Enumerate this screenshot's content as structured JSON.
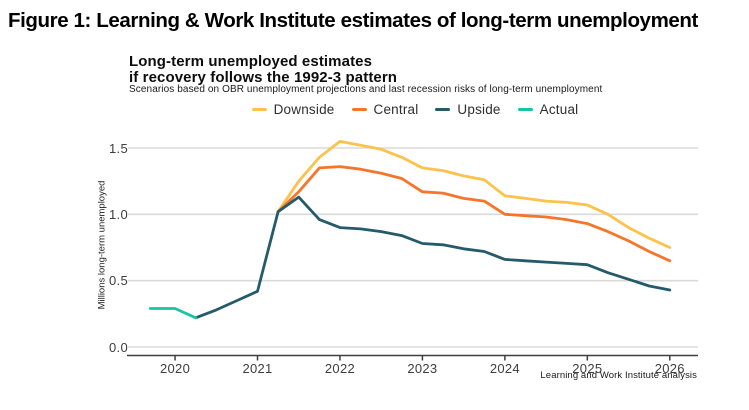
{
  "figure_title": "Figure 1: Learning & Work Institute estimates of long-term unemployment",
  "chart_data": {
    "type": "line",
    "title_line1": "Long-term unemployed estimates",
    "title_line2": "if recovery follows the 1992-3 pattern",
    "subtitle": "Scenarios based on OBR unemployment projections and last recession risks of long-term unemployment",
    "ylabel": "Millions long-term unemployed",
    "xlabel": "",
    "source_caption": "Learning and Work Institute analysis",
    "xlim": [
      2019.49,
      2026.33
    ],
    "ylim": [
      0,
      1.5
    ],
    "x_ticks": [
      "2020",
      "2021",
      "2022",
      "2023",
      "2024",
      "2025",
      "2026"
    ],
    "x_tick_values": [
      2020,
      2021,
      2022,
      2023,
      2024,
      2025,
      2026
    ],
    "y_ticks": [
      "0.0",
      "0.5",
      "1.0",
      "1.5"
    ],
    "y_tick_values": [
      0,
      0.5,
      1.0,
      1.5
    ],
    "grid": "horizontal",
    "legend_position": "top-center",
    "colors": {
      "grid": "#DADADA",
      "axis": "#3F3F3F"
    },
    "series": [
      {
        "name": "Downside",
        "color": "#FCC24B",
        "x": [
          2021.25,
          2021.5,
          2021.75,
          2022,
          2022.25,
          2022.5,
          2022.75,
          2023,
          2023.25,
          2023.5,
          2023.75,
          2024,
          2024.25,
          2024.5,
          2024.75,
          2025,
          2025.25,
          2025.5,
          2025.75,
          2026
        ],
        "y": [
          1.02,
          1.25,
          1.43,
          1.55,
          1.52,
          1.49,
          1.43,
          1.35,
          1.33,
          1.29,
          1.26,
          1.14,
          1.12,
          1.1,
          1.09,
          1.07,
          1.0,
          0.9,
          0.82,
          0.75
        ]
      },
      {
        "name": "Central",
        "color": "#F5752B",
        "x": [
          2021.25,
          2021.5,
          2021.75,
          2022,
          2022.25,
          2022.5,
          2022.75,
          2023,
          2023.25,
          2023.5,
          2023.75,
          2024,
          2024.25,
          2024.5,
          2024.75,
          2025,
          2025.25,
          2025.5,
          2025.75,
          2026
        ],
        "y": [
          1.02,
          1.17,
          1.35,
          1.36,
          1.34,
          1.31,
          1.27,
          1.17,
          1.16,
          1.12,
          1.1,
          1.0,
          0.99,
          0.98,
          0.96,
          0.93,
          0.87,
          0.8,
          0.72,
          0.65
        ]
      },
      {
        "name": "Upside",
        "color": "#255A6B",
        "x": [
          2020.25,
          2020.5,
          2020.75,
          2021,
          2021.25,
          2021.5,
          2021.75,
          2022,
          2022.25,
          2022.5,
          2022.75,
          2023,
          2023.25,
          2023.5,
          2023.75,
          2024,
          2024.25,
          2024.5,
          2024.75,
          2025,
          2025.25,
          2025.5,
          2025.75,
          2026
        ],
        "y": [
          0.22,
          0.28,
          0.35,
          0.42,
          1.02,
          1.13,
          0.96,
          0.9,
          0.89,
          0.87,
          0.84,
          0.78,
          0.77,
          0.74,
          0.72,
          0.66,
          0.65,
          0.64,
          0.63,
          0.62,
          0.56,
          0.51,
          0.46,
          0.43
        ]
      },
      {
        "name": "Actual",
        "color": "#19C3A3",
        "x": [
          2019.7,
          2020,
          2020.25
        ],
        "y": [
          0.29,
          0.29,
          0.22
        ]
      }
    ]
  }
}
